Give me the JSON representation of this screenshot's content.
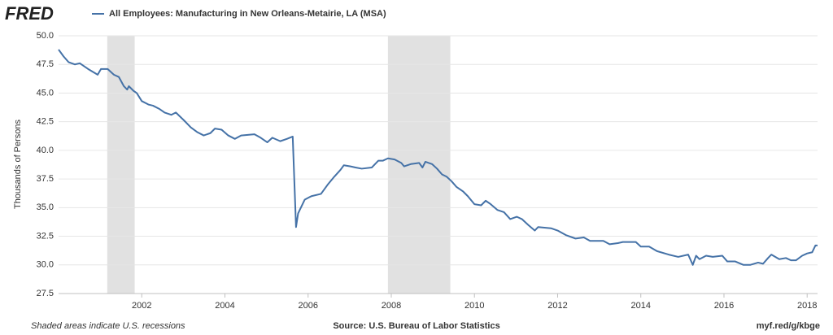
{
  "logo": "FRED",
  "chart_data": {
    "type": "line",
    "series": [
      {
        "name": "All Employees: Manufacturing in New Orleans-Metairie, LA (MSA)",
        "color": "#4572a7",
        "values": [
          48.8,
          48.2,
          47.7,
          47.5,
          47.6,
          47.1,
          46.6,
          47.1,
          47.1,
          46.6,
          46.4,
          45.6,
          45.3,
          45.6,
          45.2,
          45.0,
          44.3,
          44.0,
          43.9,
          43.6,
          43.3,
          43.1,
          43.3,
          42.6,
          42.0,
          41.6,
          41.3,
          41.5,
          41.9,
          41.8,
          41.3,
          41.0,
          41.3,
          41.4,
          41.1,
          40.7,
          41.1,
          40.8,
          41.0,
          41.2,
          33.3,
          34.5,
          35.7,
          36.0,
          36.2,
          37.0,
          37.7,
          38.3,
          38.7,
          38.6,
          38.5,
          38.4,
          38.5,
          39.1,
          39.1,
          39.3,
          39.2,
          38.9,
          38.6,
          38.8,
          38.9,
          38.5,
          39.0,
          38.8,
          38.4,
          37.9,
          37.7,
          37.3,
          36.8,
          36.4,
          36.0,
          35.3,
          35.2,
          35.6,
          35.3,
          34.8,
          34.6,
          34.0,
          34.2,
          34.0,
          33.5,
          33.0,
          33.3,
          33.2,
          33.0,
          32.6,
          32.3,
          32.4,
          32.1,
          32.1,
          31.8,
          31.9,
          32.0,
          32.0,
          31.6,
          31.6,
          31.2,
          30.9,
          30.7,
          30.9,
          30.0,
          30.8,
          30.5,
          30.8,
          30.7,
          30.8,
          30.3,
          30.3,
          30.0,
          30.0,
          30.2,
          30.1,
          30.6,
          30.9,
          30.5,
          30.6,
          30.4,
          30.4,
          30.8,
          31.0,
          31.1,
          31.7,
          31.7
        ]
      }
    ],
    "x": [
      2000.0,
      2000.12,
      2000.24,
      2000.39,
      2000.51,
      2000.71,
      2000.94,
      2001.02,
      2001.18,
      2001.33,
      2001.45,
      2001.57,
      2001.65,
      2001.69,
      2001.8,
      2001.88,
      2002.0,
      2002.16,
      2002.27,
      2002.43,
      2002.55,
      2002.71,
      2002.82,
      2003.02,
      2003.18,
      2003.33,
      2003.49,
      2003.65,
      2003.76,
      2003.92,
      2004.08,
      2004.24,
      2004.39,
      2004.71,
      2004.86,
      2005.02,
      2005.14,
      2005.33,
      2005.49,
      2005.63,
      2005.71,
      2005.76,
      2005.92,
      2006.08,
      2006.31,
      2006.47,
      2006.63,
      2006.78,
      2006.86,
      2007.02,
      2007.14,
      2007.29,
      2007.53,
      2007.69,
      2007.8,
      2007.92,
      2008.08,
      2008.24,
      2008.31,
      2008.47,
      2008.67,
      2008.75,
      2008.82,
      2008.98,
      2009.1,
      2009.22,
      2009.33,
      2009.45,
      2009.57,
      2009.73,
      2009.84,
      2010.0,
      2010.16,
      2010.27,
      2010.39,
      2010.55,
      2010.71,
      2010.86,
      2011.02,
      2011.14,
      2011.29,
      2011.45,
      2011.53,
      2011.84,
      2012.0,
      2012.2,
      2012.43,
      2012.63,
      2012.78,
      2013.1,
      2013.25,
      2013.45,
      2013.57,
      2013.88,
      2014.0,
      2014.2,
      2014.39,
      2014.67,
      2014.9,
      2015.14,
      2015.25,
      2015.33,
      2015.41,
      2015.57,
      2015.73,
      2015.96,
      2016.08,
      2016.27,
      2016.47,
      2016.63,
      2016.82,
      2016.94,
      2017.06,
      2017.14,
      2017.33,
      2017.49,
      2017.61,
      2017.73,
      2017.88,
      2018.0,
      2018.12,
      2018.2,
      2018.25
    ],
    "xlim": [
      2000,
      2018.25
    ],
    "xticks": [
      2002,
      2004,
      2006,
      2008,
      2010,
      2012,
      2014,
      2016,
      2018
    ],
    "ylim": [
      27.5,
      50
    ],
    "yticks": [
      27.5,
      {
        "value": 30,
        "label": "30.0"
      },
      32.5,
      {
        "value": 35,
        "label": "35.0"
      },
      37.5,
      {
        "value": 40,
        "label": "40.0"
      },
      42.5,
      {
        "value": 45,
        "label": "45.0"
      },
      47.5,
      {
        "value": 50,
        "label": "50.0"
      }
    ],
    "ylabel": "Thousands of Persons",
    "grid": true,
    "recessions": [
      [
        2001.17,
        2001.83
      ],
      [
        2007.92,
        2009.42
      ]
    ],
    "recession_color": "#e1e1e1",
    "note": "Shaded areas indicate U.S. recessions",
    "source": "Source: U.S. Bureau of Labor Statistics",
    "link": "myf.red/g/kbge"
  }
}
